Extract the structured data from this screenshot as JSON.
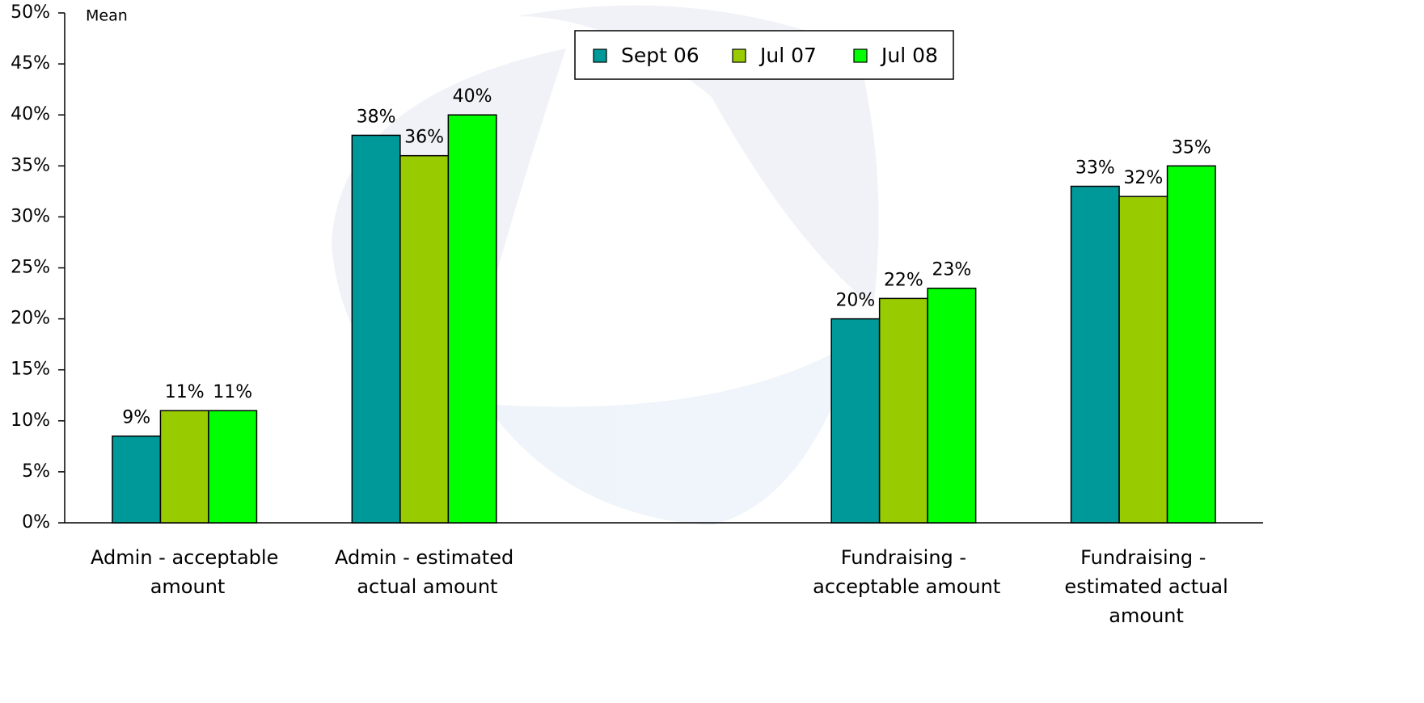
{
  "chart_data": {
    "type": "bar",
    "y_label": "Mean",
    "categories": [
      "Admin - acceptable amount",
      "Admin - estimated actual amount",
      null,
      "Fundraising - acceptable amount",
      "Fundraising - estimated actual amount"
    ],
    "series": [
      {
        "name": "Sept 06",
        "color": "#009999",
        "values": [
          8.5,
          38,
          null,
          20,
          33
        ],
        "value_labels": [
          "9%",
          "38%",
          null,
          "20%",
          "33%"
        ]
      },
      {
        "name": "Jul 07",
        "color": "#99cc00",
        "values": [
          11,
          36,
          null,
          22,
          32
        ],
        "value_labels": [
          "11%",
          "36%",
          null,
          "22%",
          "32%"
        ]
      },
      {
        "name": "Jul 08",
        "color": "#00ff00",
        "values": [
          11,
          40,
          null,
          23,
          35
        ],
        "value_labels": [
          "11%",
          "40%",
          null,
          "23%",
          "35%"
        ]
      }
    ],
    "ylim": [
      0,
      50
    ],
    "yticks": [
      {
        "value": 0,
        "label": "0%"
      },
      {
        "value": 5,
        "label": "5%"
      },
      {
        "value": 10,
        "label": "10%"
      },
      {
        "value": 15,
        "label": "15%"
      },
      {
        "value": 20,
        "label": "20%"
      },
      {
        "value": 25,
        "label": "25%"
      },
      {
        "value": 30,
        "label": "30%"
      },
      {
        "value": 35,
        "label": "35%"
      },
      {
        "value": 40,
        "label": "40%"
      },
      {
        "value": 45,
        "label": "45%"
      },
      {
        "value": 50,
        "label": "50%"
      }
    ],
    "legend": "top"
  }
}
